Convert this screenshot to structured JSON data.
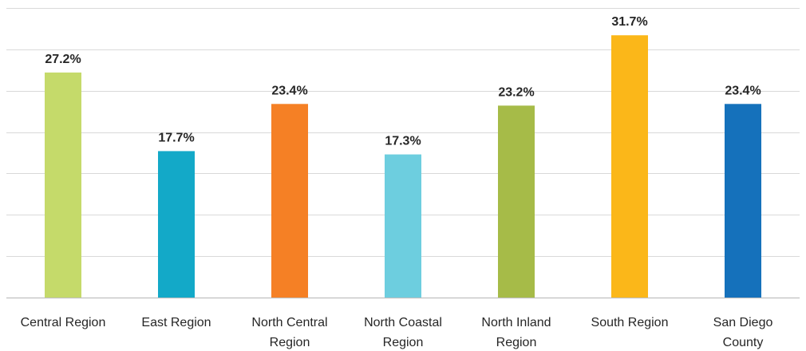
{
  "chart_data": {
    "type": "bar",
    "categories": [
      [
        "Central Region"
      ],
      [
        "East Region"
      ],
      [
        "North Central",
        "Region"
      ],
      [
        "North Coastal",
        "Region"
      ],
      [
        "North Inland",
        "Region"
      ],
      [
        "South Region"
      ],
      [
        "San Diego",
        "County"
      ]
    ],
    "values": [
      27.2,
      17.7,
      23.4,
      17.3,
      23.2,
      31.7,
      23.4
    ],
    "value_labels": [
      "27.2%",
      "17.7%",
      "23.4%",
      "17.3%",
      "23.2%",
      "31.7%",
      "23.4%"
    ],
    "colors": [
      "#c5da6a",
      "#13a9c8",
      "#f58025",
      "#6dcedf",
      "#a6bb48",
      "#fbb719",
      "#1571bb"
    ],
    "ylim": [
      0,
      35
    ],
    "grid": true,
    "legend": "none"
  }
}
